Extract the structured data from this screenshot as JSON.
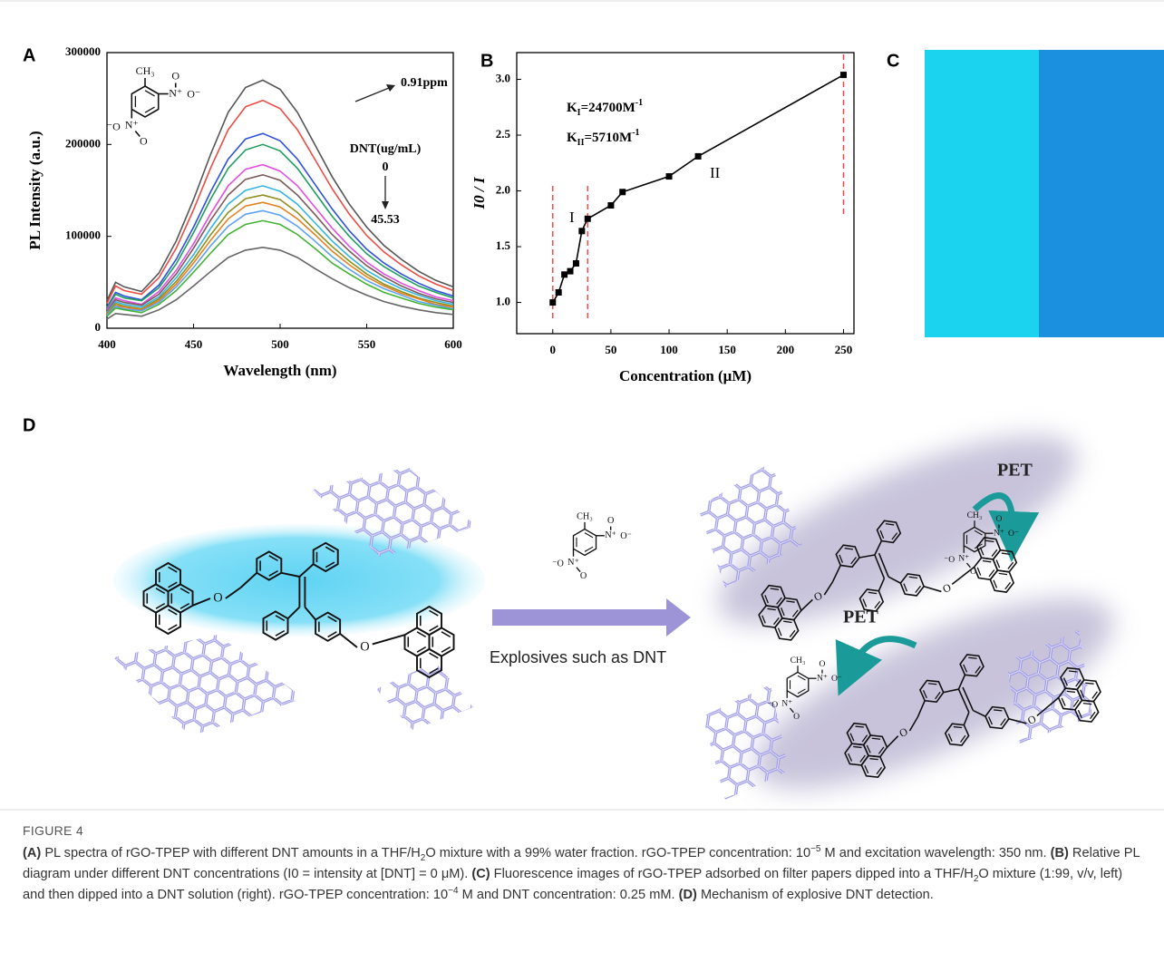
{
  "panel_labels": [
    "A",
    "B",
    "C",
    "D"
  ],
  "chart_data": [
    {
      "type": "line",
      "x_label": "Wavelength (nm)",
      "y_label": "PL Intensity (a.u.)",
      "x": [
        400,
        405,
        410,
        420,
        430,
        440,
        450,
        460,
        470,
        480,
        490,
        500,
        510,
        520,
        530,
        540,
        550,
        560,
        570,
        580,
        590,
        600
      ],
      "xlim": [
        400,
        600
      ],
      "ylim": [
        0,
        300000
      ],
      "xticks": [
        400,
        450,
        500,
        550,
        600
      ],
      "yticks": [
        0,
        100000,
        200000,
        300000
      ],
      "series": [
        {
          "color": "#555555",
          "values": [
            30000,
            50000,
            45000,
            40000,
            60000,
            95000,
            140000,
            190000,
            235000,
            262000,
            270000,
            260000,
            235000,
            200000,
            165000,
            135000,
            110000,
            90000,
            75000,
            62000,
            52000,
            45000
          ]
        },
        {
          "color": "#ee4b43",
          "values": [
            27000,
            46000,
            41000,
            37000,
            55000,
            87000,
            129000,
            175000,
            216000,
            241000,
            248000,
            239000,
            216000,
            184000,
            152000,
            124000,
            101000,
            83000,
            69000,
            57000,
            48000,
            41000
          ]
        },
        {
          "color": "#2f4fe0",
          "values": [
            23000,
            39000,
            35000,
            31000,
            47000,
            75000,
            110000,
            149000,
            184000,
            206000,
            212000,
            204000,
            184000,
            157000,
            130000,
            106000,
            86000,
            71000,
            59000,
            49000,
            41000,
            35000
          ]
        },
        {
          "color": "#1f9e5f",
          "values": [
            22000,
            37000,
            33000,
            30000,
            44000,
            70000,
            104000,
            141000,
            174000,
            194000,
            200000,
            193000,
            174000,
            148000,
            122000,
            100000,
            81000,
            67000,
            56000,
            46000,
            39000,
            33000
          ]
        },
        {
          "color": "#e24ee2",
          "values": [
            20000,
            33000,
            30000,
            26000,
            40000,
            63000,
            92000,
            125000,
            155000,
            173000,
            178000,
            171000,
            155000,
            132000,
            109000,
            89000,
            72000,
            59000,
            49000,
            41000,
            34000,
            30000
          ]
        },
        {
          "color": "#7a5a5a",
          "values": [
            18000,
            31000,
            28000,
            25000,
            37000,
            59000,
            87000,
            118000,
            145000,
            162000,
            167000,
            161000,
            145000,
            124000,
            102000,
            84000,
            68000,
            56000,
            46000,
            38000,
            32000,
            28000
          ]
        },
        {
          "color": "#33b5e5",
          "values": [
            17000,
            29000,
            26000,
            23000,
            34000,
            55000,
            80000,
            109000,
            135000,
            150000,
            155000,
            149000,
            135000,
            115000,
            95000,
            78000,
            63000,
            52000,
            43000,
            36000,
            30000,
            26000
          ]
        },
        {
          "color": "#8f8f1f",
          "values": [
            16000,
            27000,
            24000,
            21000,
            32000,
            51000,
            75000,
            102000,
            126000,
            141000,
            145000,
            140000,
            126000,
            107000,
            89000,
            73000,
            59000,
            48000,
            40000,
            33000,
            28000,
            24000
          ]
        },
        {
          "color": "#e3821f",
          "values": [
            15000,
            25000,
            23000,
            20000,
            30000,
            48000,
            71000,
            96000,
            119000,
            133000,
            137000,
            132000,
            119000,
            102000,
            84000,
            69000,
            56000,
            46000,
            38000,
            32000,
            26000,
            23000
          ]
        },
        {
          "color": "#5fa2f0",
          "values": [
            14000,
            24000,
            21000,
            19000,
            28000,
            45000,
            66000,
            90000,
            111000,
            124000,
            128000,
            123000,
            111000,
            95000,
            78000,
            64000,
            52000,
            43000,
            36000,
            29000,
            25000,
            21000
          ]
        },
        {
          "color": "#44b334",
          "values": [
            13000,
            22000,
            20000,
            17000,
            26000,
            41000,
            61000,
            82000,
            102000,
            113000,
            117000,
            113000,
            102000,
            87000,
            71000,
            59000,
            48000,
            39000,
            33000,
            27000,
            23000,
            20000
          ]
        },
        {
          "color": "#666666",
          "values": [
            10000,
            16000,
            15000,
            13000,
            20000,
            31000,
            46000,
            62000,
            77000,
            85000,
            88000,
            85000,
            77000,
            65000,
            54000,
            44000,
            36000,
            29000,
            24000,
            20000,
            17000,
            15000
          ]
        }
      ],
      "annotations": [
        "0.91ppm",
        "DNT(ug/mL)",
        "0",
        "45.53"
      ]
    },
    {
      "type": "line",
      "x_label": "Concentration (μM)",
      "y_label": "I0 / I",
      "x": [
        0,
        5,
        10,
        15,
        20,
        25,
        30,
        50,
        60,
        100,
        125,
        250
      ],
      "values": [
        1.0,
        1.09,
        1.25,
        1.28,
        1.35,
        1.64,
        1.75,
        1.87,
        1.99,
        2.13,
        2.31,
        3.04
      ],
      "color": "#000000",
      "marker": "square",
      "xlim": [
        -31,
        259
      ],
      "ylim": [
        0.72,
        3.24
      ],
      "xticks": [
        0,
        50,
        100,
        150,
        200,
        250
      ],
      "yticks": [
        {
          "value": 1,
          "label": "1.0"
        },
        1.5,
        {
          "value": 2,
          "label": "2.0"
        },
        2.5,
        {
          "value": 3,
          "label": "3.0"
        }
      ],
      "reference_lines": {
        "x": [
          0,
          30,
          250
        ],
        "color": "#ff3b3b"
      },
      "k_constants": [
        {
          "symbol": "K",
          "subscript": "I",
          "value": "=24700M",
          "superscript": "-1"
        },
        {
          "symbol": "K",
          "subscript": "II",
          "value": "=5710M",
          "superscript": "-1"
        }
      ],
      "annotations": [
        "I",
        "II"
      ]
    }
  ],
  "dnt_labels": [
    "CH₃",
    "O",
    "N⁺",
    "O⁻",
    "⁻O",
    "N⁺",
    "O"
  ],
  "diagram": {
    "arrow_label": "Explosives such as DNT",
    "pet_labels": [
      "PET",
      "PET"
    ],
    "atom_label": "O"
  },
  "caption": {
    "figure": "FIGURE 4",
    "parts": [
      {
        "style": "b",
        "text": "(A)"
      },
      {
        "style": "n",
        "text": " PL spectra of rGO-TPEP with different DNT amounts in a THF/H"
      },
      {
        "style": "sub",
        "text": "2"
      },
      {
        "style": "n",
        "text": "O mixture with a 99% water fraction. rGO-TPEP concentration: 10"
      },
      {
        "style": "sup",
        "text": "−5"
      },
      {
        "style": "n",
        "text": " M and excitation wavelength: 350 nm. "
      },
      {
        "style": "b",
        "text": "(B)"
      },
      {
        "style": "n",
        "text": " Relative PL diagram under different DNT concentrations (I0 = intensity at [DNT] = 0 μM). "
      },
      {
        "style": "b",
        "text": "(C)"
      },
      {
        "style": "n",
        "text": " Fluorescence images of rGO-TPEP adsorbed on filter papers dipped into a THF/H"
      },
      {
        "style": "sub",
        "text": "2"
      },
      {
        "style": "n",
        "text": "O mixture (1:99, v/v, left) and then dipped into a DNT solution (right). rGO-TPEP concentration: 10"
      },
      {
        "style": "sup",
        "text": "−4"
      },
      {
        "style": "n",
        "text": " M and DNT concentration: 0.25 mM. "
      },
      {
        "style": "b",
        "text": "(D)"
      },
      {
        "style": "n",
        "text": " Mechanism of explosive DNT detection."
      }
    ]
  }
}
